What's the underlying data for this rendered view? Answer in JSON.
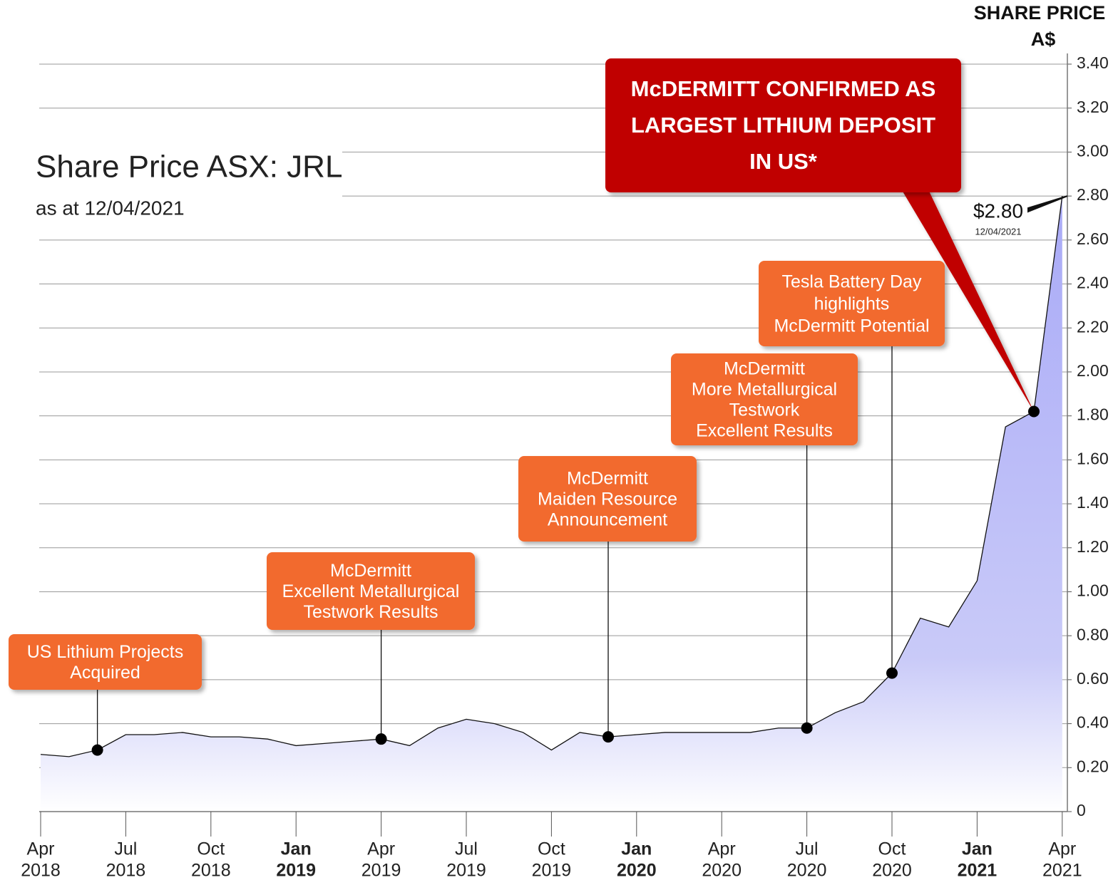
{
  "chart_data": {
    "type": "area",
    "title": "Share Price ASX: JRL",
    "subtitle": "as at 12/04/2021",
    "y_label": [
      "SHARE PRICE",
      "A$"
    ],
    "x": [
      "2018-04",
      "2018-05",
      "2018-06",
      "2018-07",
      "2018-08",
      "2018-09",
      "2018-10",
      "2018-11",
      "2018-12",
      "2019-01",
      "2019-02",
      "2019-03",
      "2019-04",
      "2019-05",
      "2019-06",
      "2019-07",
      "2019-08",
      "2019-09",
      "2019-10",
      "2019-11",
      "2019-12",
      "2020-01",
      "2020-02",
      "2020-03",
      "2020-04",
      "2020-05",
      "2020-06",
      "2020-07",
      "2020-08",
      "2020-09",
      "2020-10",
      "2020-11",
      "2020-12",
      "2021-01",
      "2021-02",
      "2021-03",
      "2021-04"
    ],
    "values": [
      0.26,
      0.25,
      0.28,
      0.35,
      0.35,
      0.36,
      0.34,
      0.34,
      0.33,
      0.3,
      0.31,
      0.32,
      0.33,
      0.3,
      0.38,
      0.42,
      0.4,
      0.36,
      0.28,
      0.36,
      0.34,
      0.35,
      0.36,
      0.36,
      0.36,
      0.36,
      0.38,
      0.38,
      0.45,
      0.5,
      0.63,
      0.88,
      0.84,
      1.05,
      1.75,
      1.82,
      2.8
    ],
    "line_color": "#111111",
    "fill_color": "#a9aaf7",
    "ylim": [
      0,
      3.4
    ],
    "yticks": [
      0,
      {
        "value": 0.2,
        "label": "0.20"
      },
      {
        "value": 0.4,
        "label": "0.40"
      },
      {
        "value": 0.6,
        "label": "0.60"
      },
      {
        "value": 0.8,
        "label": "0.80"
      },
      {
        "value": 1.0,
        "label": "1.00"
      },
      {
        "value": 1.2,
        "label": "1.20"
      },
      {
        "value": 1.4,
        "label": "1.40"
      },
      {
        "value": 1.6,
        "label": "1.60"
      },
      {
        "value": 1.8,
        "label": "1.80"
      },
      {
        "value": 2.0,
        "label": "2.00"
      },
      {
        "value": 2.2,
        "label": "2.20"
      },
      {
        "value": 2.4,
        "label": "2.40"
      },
      {
        "value": 2.6,
        "label": "2.60"
      },
      {
        "value": 2.8,
        "label": "2.80"
      },
      {
        "value": 3.0,
        "label": "3.00"
      },
      {
        "value": 3.2,
        "label": "3.20"
      },
      {
        "value": 3.4,
        "label": "3.40"
      }
    ],
    "xticks": [
      {
        "value": "2018-04",
        "label": [
          "Apr",
          "2018"
        ]
      },
      {
        "value": "2018-07",
        "label": [
          "Jul",
          "2018"
        ]
      },
      {
        "value": "2018-10",
        "label": [
          "Oct",
          "2018"
        ]
      },
      {
        "value": "2019-01",
        "label": [
          "Jan",
          "2019"
        ]
      },
      {
        "value": "2019-04",
        "label": [
          "Apr",
          "2019"
        ]
      },
      {
        "value": "2019-07",
        "label": [
          "Jul",
          "2019"
        ]
      },
      {
        "value": "2019-10",
        "label": [
          "Oct",
          "2019"
        ]
      },
      {
        "value": "2020-01",
        "label": [
          "Jan",
          "2020"
        ]
      },
      {
        "value": "2020-04",
        "label": [
          "Apr",
          "2020"
        ]
      },
      {
        "value": "2020-07",
        "label": [
          "Jul",
          "2020"
        ]
      },
      {
        "value": "2020-10",
        "label": [
          "Oct",
          "2020"
        ]
      },
      {
        "value": "2021-01",
        "label": [
          "Jan",
          "2021"
        ]
      },
      {
        "value": "2021-04",
        "label": [
          "Apr",
          "2021"
        ]
      }
    ],
    "grid": true,
    "annotations": [
      {
        "text": [
          "US Lithium Projects",
          "Acquired"
        ],
        "x": "2018-06",
        "y": 0.28,
        "color": "#f26b2f"
      },
      {
        "text": [
          "McDermitt",
          "Excellent Metallurgical",
          "Testwork Results"
        ],
        "x": "2019-04",
        "y": 0.33,
        "color": "#f26b2f"
      },
      {
        "text": [
          "McDermitt",
          "Maiden Resource",
          "Announcement"
        ],
        "x": "2019-12",
        "y": 0.34,
        "color": "#f26b2f"
      },
      {
        "text": [
          "McDermitt",
          "More Metallurgical",
          "Testwork",
          "Excellent Results"
        ],
        "x": "2020-07",
        "y": 0.38,
        "color": "#f26b2f"
      },
      {
        "text": [
          "Tesla Battery Day",
          "highlights",
          "McDermitt Potential"
        ],
        "x": "2020-10",
        "y": 0.63,
        "color": "#f26b2f"
      },
      {
        "text": [
          "McDERMITT CONFIRMED AS",
          "LARGEST LITHIUM DEPOSIT",
          "IN US*"
        ],
        "x": "2021-03",
        "y": 1.82,
        "color": "#c00000"
      }
    ],
    "last_price": {
      "value": 2.8,
      "label": "$2.80",
      "date": "12/04/2021"
    }
  }
}
